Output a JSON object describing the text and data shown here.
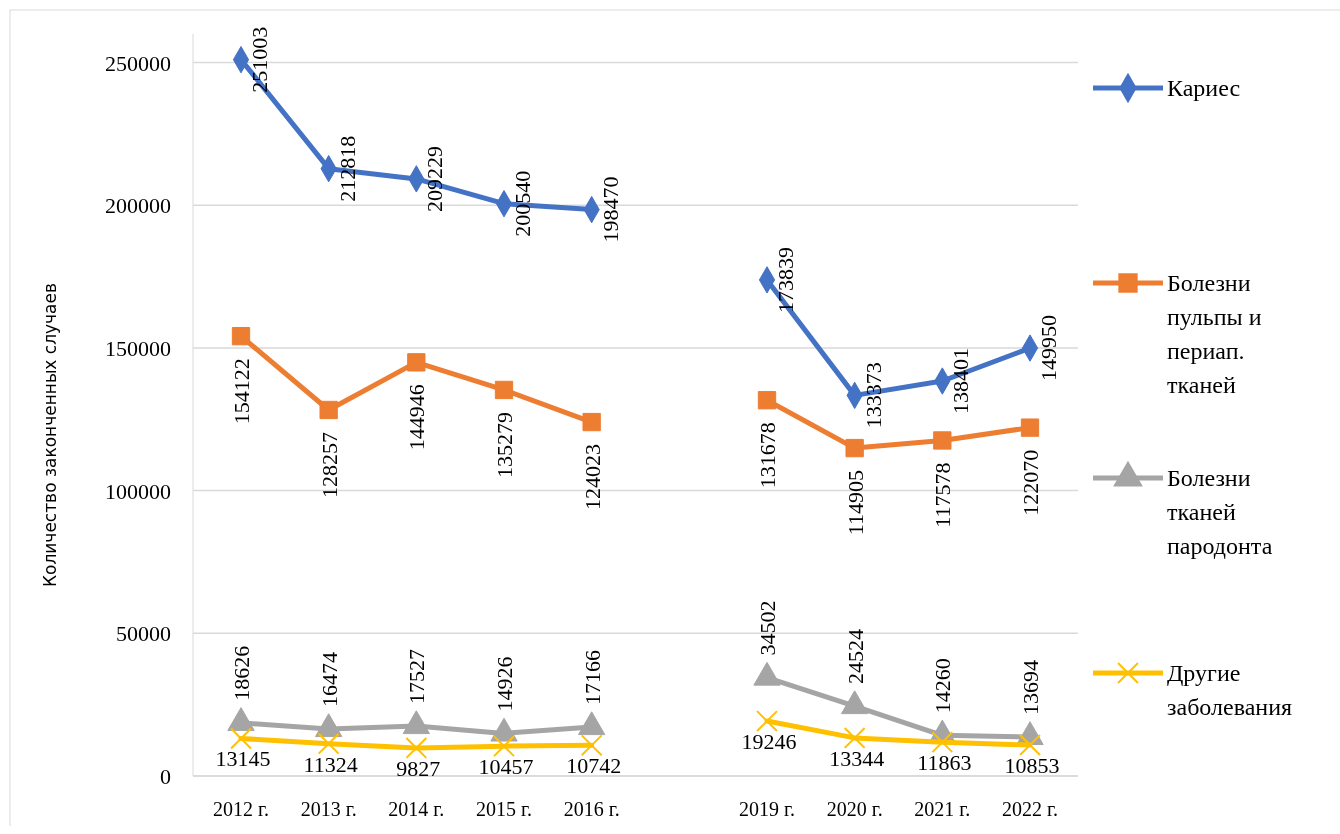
{
  "chart_data": {
    "type": "line",
    "ylabel": "Количество законченных случаев",
    "categories": [
      "2012 г.",
      "2013 г.",
      "2014 г.",
      "2015 г.",
      "2016 г.",
      null,
      "2019 г.",
      "2020 г.",
      "2021 г.",
      "2022 г."
    ],
    "series": [
      {
        "name": "Кариес",
        "color": "#4472c4",
        "marker": "diamond",
        "values": [
          251003,
          212818,
          209229,
          200540,
          198470,
          null,
          173839,
          133373,
          138401,
          149950
        ]
      },
      {
        "name": "Болезни пульпы и периап. тканей",
        "color": "#ed7d31",
        "marker": "square",
        "values": [
          154122,
          128257,
          144946,
          135279,
          124023,
          null,
          131678,
          114905,
          117578,
          122070
        ]
      },
      {
        "name": "Болезни тканей пародонта",
        "color": "#a5a5a5",
        "marker": "triangle",
        "values": [
          18626,
          16474,
          17527,
          14926,
          17166,
          null,
          34502,
          24524,
          14260,
          13694
        ]
      },
      {
        "name": "Другие заболевания",
        "color": "#ffc000",
        "marker": "cross",
        "values": [
          13145,
          11324,
          9827,
          10457,
          10742,
          null,
          19246,
          13344,
          11863,
          10853
        ]
      }
    ],
    "ylim": [
      0,
      260000
    ],
    "yticks": [
      0,
      50000,
      100000,
      150000,
      200000,
      250000
    ],
    "grid": "y",
    "legend": "right",
    "data_labels": true
  }
}
